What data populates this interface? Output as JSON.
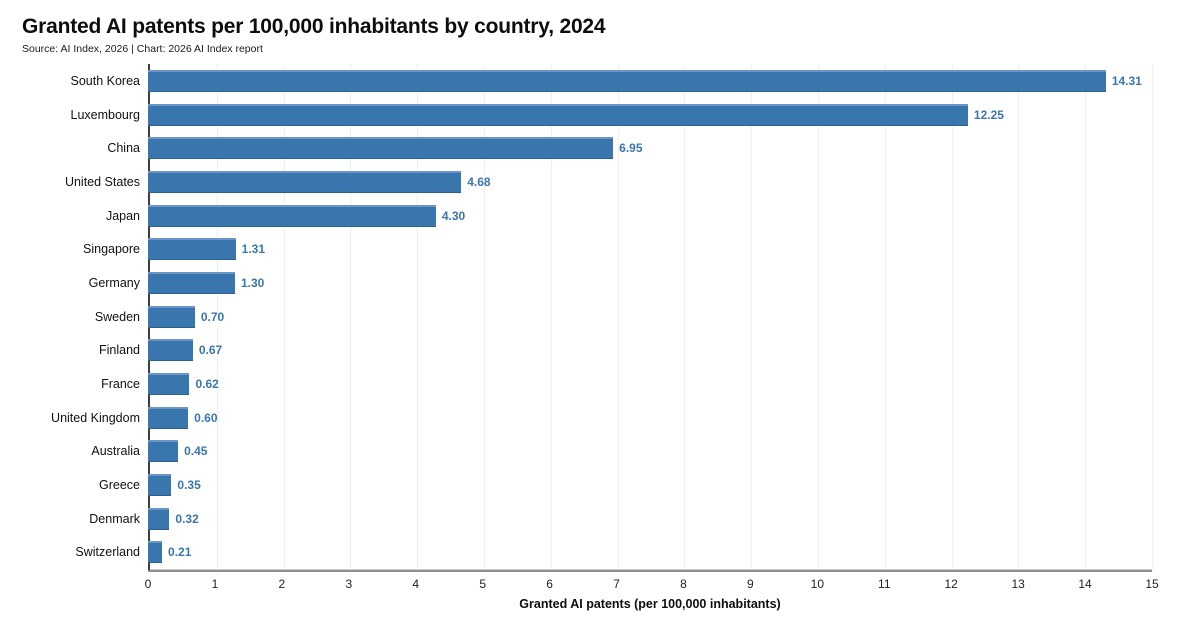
{
  "chart_data": {
    "type": "bar",
    "orientation": "horizontal",
    "title": "Granted AI patents per 100,000 inhabitants by country, 2024",
    "source": "Source: AI Index, 2026 | Chart: 2026 AI Index report",
    "xlabel": "Granted AI patents (per 100,000 inhabitants)",
    "categories": [
      "South Korea",
      "Luxembourg",
      "China",
      "United States",
      "Japan",
      "Singapore",
      "Germany",
      "Sweden",
      "Finland",
      "France",
      "United Kingdom",
      "Australia",
      "Greece",
      "Denmark",
      "Switzerland"
    ],
    "values": [
      14.31,
      12.25,
      6.95,
      4.68,
      4.3,
      1.31,
      1.3,
      0.7,
      0.67,
      0.62,
      0.6,
      0.45,
      0.35,
      0.32,
      0.21
    ],
    "value_labels": [
      "14.31",
      "12.25",
      "6.95",
      "4.68",
      "4.30",
      "1.31",
      "1.30",
      "0.70",
      "0.67",
      "0.62",
      "0.60",
      "0.45",
      "0.35",
      "0.32",
      "0.21"
    ],
    "xlim": [
      0,
      15
    ],
    "x_ticks": [
      0,
      1,
      2,
      3,
      4,
      5,
      6,
      7,
      8,
      9,
      10,
      11,
      12,
      13,
      14,
      15
    ],
    "grid": "vertical-light",
    "legend": "none",
    "colors": {
      "bar": "#3a76ae",
      "value_label": "#3a76ae",
      "title": "#0d0d0d",
      "gridline": "#edf0f4",
      "left_spine": "#3d3d3d",
      "bottom_spine": "#8f8f8f"
    }
  }
}
